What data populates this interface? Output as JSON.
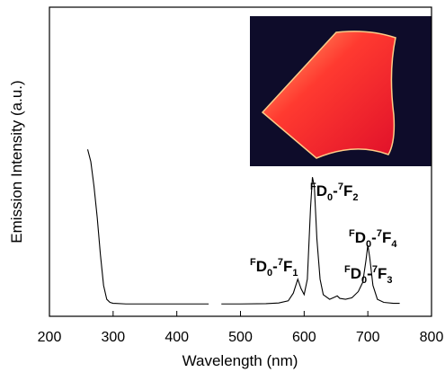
{
  "chart_data": {
    "type": "line",
    "x_label": "Wavelength (nm)",
    "y_label": "Emission Intensity (a.u.)",
    "xlim": [
      200,
      800
    ],
    "xticks": [
      200,
      300,
      400,
      500,
      600,
      700,
      800
    ],
    "ylim": [
      0,
      1
    ],
    "color": "#000000",
    "x": [
      260,
      265,
      270,
      275,
      280,
      285,
      290,
      295,
      300,
      320,
      350,
      400,
      450,
      460,
      470,
      500,
      540,
      560,
      575,
      583,
      590,
      595,
      600,
      605,
      610,
      613,
      616,
      620,
      625,
      630,
      640,
      648,
      652,
      656,
      665,
      675,
      685,
      692,
      697,
      700,
      703,
      708,
      715,
      725,
      740,
      750
    ],
    "values": [
      0.54,
      0.5,
      0.42,
      0.32,
      0.2,
      0.1,
      0.055,
      0.045,
      0.042,
      0.04,
      0.04,
      0.04,
      0.04,
      null,
      0.04,
      0.04,
      0.041,
      0.043,
      0.05,
      0.075,
      0.12,
      0.09,
      0.07,
      0.12,
      0.35,
      0.45,
      0.42,
      0.25,
      0.12,
      0.07,
      0.055,
      0.062,
      0.066,
      0.058,
      0.055,
      0.06,
      0.08,
      0.11,
      0.18,
      0.23,
      0.19,
      0.1,
      0.055,
      0.045,
      0.042,
      0.042
    ],
    "annotations": [
      {
        "parts": [
          {
            "text": "F",
            "pos": "sup"
          },
          {
            "text": "D",
            "pos": "base"
          },
          {
            "text": "0",
            "pos": "sub"
          },
          {
            "text": "-",
            "pos": "base"
          },
          {
            "text": "7",
            "pos": "sup"
          },
          {
            "text": "F",
            "pos": "base"
          },
          {
            "text": "1",
            "pos": "sub"
          }
        ]
      },
      {
        "parts": [
          {
            "text": "F",
            "pos": "sup"
          },
          {
            "text": "D",
            "pos": "base"
          },
          {
            "text": "0",
            "pos": "sub"
          },
          {
            "text": "-",
            "pos": "base"
          },
          {
            "text": "7",
            "pos": "sup"
          },
          {
            "text": "F",
            "pos": "base"
          },
          {
            "text": "2",
            "pos": "sub"
          }
        ]
      },
      {
        "parts": [
          {
            "text": "F",
            "pos": "sup"
          },
          {
            "text": "D",
            "pos": "base"
          },
          {
            "text": "0",
            "pos": "sub"
          },
          {
            "text": "-",
            "pos": "base"
          },
          {
            "text": "7",
            "pos": "sup"
          },
          {
            "text": "F",
            "pos": "base"
          },
          {
            "text": "3",
            "pos": "sub"
          }
        ]
      },
      {
        "parts": [
          {
            "text": "F",
            "pos": "sup"
          },
          {
            "text": "D",
            "pos": "base"
          },
          {
            "text": "0",
            "pos": "sub"
          },
          {
            "text": "-",
            "pos": "base"
          },
          {
            "text": "7",
            "pos": "sup"
          },
          {
            "text": "F",
            "pos": "base"
          },
          {
            "text": "4",
            "pos": "sub"
          }
        ]
      }
    ]
  }
}
